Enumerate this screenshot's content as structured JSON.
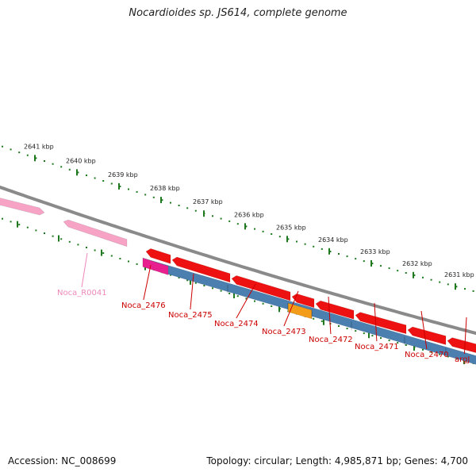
{
  "title": "Nocardioides sp. JS614, complete genome",
  "footer": {
    "accession": "Accession: NC_008699",
    "summary": "Topology: circular; Length: 4,985,871 bp; Genes: 4,700"
  },
  "colors": {
    "forward_gene": "#ee1111",
    "rna": "#f7a3c6",
    "magenta_gene": "#e8208f",
    "blue_band": "#4a7fb0",
    "orange_gene": "#f39c1a",
    "ticks": "#1f7a1f",
    "backbone": "#8a8a8a",
    "label_red": "#cc0000",
    "label_pink": "#ee88bb"
  },
  "kbp_ticks": [
    "2641 kbp",
    "2640 kbp",
    "2639 kbp",
    "2638 kbp",
    "2637 kbp",
    "2636 kbp",
    "2635 kbp",
    "2634 kbp",
    "2633 kbp",
    "2632 kbp",
    "2631 kbp"
  ],
  "gene_labels": [
    {
      "text": "Noca_R0041",
      "kind": "rna"
    },
    {
      "text": "Noca_2476",
      "kind": "gene"
    },
    {
      "text": "Noca_2475",
      "kind": "gene"
    },
    {
      "text": "Noca_2474",
      "kind": "gene"
    },
    {
      "text": "Noca_2473",
      "kind": "gene"
    },
    {
      "text": "Noca_2472",
      "kind": "gene"
    },
    {
      "text": "Noca_2471",
      "kind": "gene"
    },
    {
      "text": "Noca_2470",
      "kind": "gene"
    },
    {
      "text": "argJ",
      "kind": "gene"
    }
  ]
}
